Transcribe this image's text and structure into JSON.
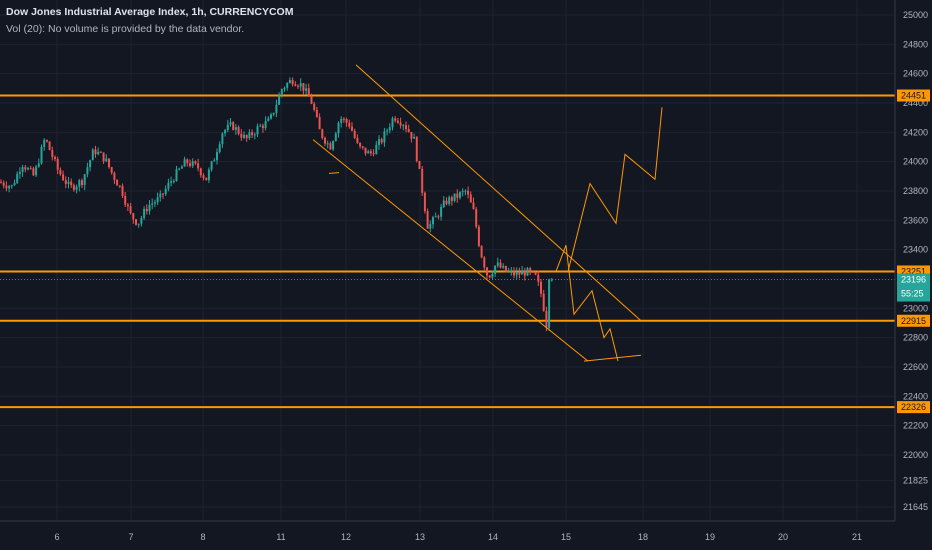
{
  "header": {
    "title": "Dow Jones Industrial Average Index, 1h, CURRENCYCOM",
    "volume_label": "Vol (20):",
    "volume_note": "No volume is provided by the data vendor."
  },
  "colors": {
    "background": "#131722",
    "up": "#26a69a",
    "down": "#ef5350",
    "level": "#ff9800",
    "grid": "#1f2330"
  },
  "chart_data": {
    "type": "candlestick",
    "title": "Dow Jones Industrial Average Index, 1h, CURRENCYCOM",
    "x_ticks": [
      "6",
      "7",
      "8",
      "11",
      "12",
      "13",
      "14",
      "15",
      "18",
      "19",
      "20",
      "21"
    ],
    "y_ticks": [
      25000,
      24800,
      24600,
      24400,
      24200,
      24000,
      23800,
      23600,
      23400,
      23000,
      22800,
      22600,
      22400,
      22200,
      22000,
      21825,
      21645
    ],
    "ylim": [
      21560,
      25080
    ],
    "grid": true,
    "horizontal_levels": [
      24451,
      23251,
      22915,
      22326
    ],
    "current_price": 23196,
    "countdown": "55:25",
    "close_path": [
      {
        "x": 0,
        "y": 23860
      },
      {
        "x": 12,
        "y": 23830
      },
      {
        "x": 22,
        "y": 23990
      },
      {
        "x": 34,
        "y": 23900
      },
      {
        "x": 45,
        "y": 24160
      },
      {
        "x": 58,
        "y": 23940
      },
      {
        "x": 70,
        "y": 23820
      },
      {
        "x": 82,
        "y": 23870
      },
      {
        "x": 94,
        "y": 24080
      },
      {
        "x": 105,
        "y": 24020
      },
      {
        "x": 112,
        "y": 23920
      },
      {
        "x": 122,
        "y": 23800
      },
      {
        "x": 130,
        "y": 23640
      },
      {
        "x": 138,
        "y": 23580
      },
      {
        "x": 148,
        "y": 23700
      },
      {
        "x": 160,
        "y": 23750
      },
      {
        "x": 172,
        "y": 23880
      },
      {
        "x": 186,
        "y": 24000
      },
      {
        "x": 198,
        "y": 23960
      },
      {
        "x": 206,
        "y": 23880
      },
      {
        "x": 214,
        "y": 24020
      },
      {
        "x": 222,
        "y": 24200
      },
      {
        "x": 232,
        "y": 24250
      },
      {
        "x": 246,
        "y": 24150
      },
      {
        "x": 258,
        "y": 24230
      },
      {
        "x": 270,
        "y": 24280
      },
      {
        "x": 282,
        "y": 24500
      },
      {
        "x": 292,
        "y": 24560
      },
      {
        "x": 302,
        "y": 24520
      },
      {
        "x": 312,
        "y": 24400
      },
      {
        "x": 320,
        "y": 24200
      },
      {
        "x": 330,
        "y": 24100
      },
      {
        "x": 340,
        "y": 24300
      },
      {
        "x": 350,
        "y": 24250
      },
      {
        "x": 358,
        "y": 24100
      },
      {
        "x": 370,
        "y": 24050
      },
      {
        "x": 382,
        "y": 24150
      },
      {
        "x": 394,
        "y": 24310
      },
      {
        "x": 404,
        "y": 24260
      },
      {
        "x": 414,
        "y": 24150
      },
      {
        "x": 420,
        "y": 23900
      },
      {
        "x": 428,
        "y": 23550
      },
      {
        "x": 436,
        "y": 23620
      },
      {
        "x": 446,
        "y": 23730
      },
      {
        "x": 456,
        "y": 23760
      },
      {
        "x": 466,
        "y": 23800
      },
      {
        "x": 474,
        "y": 23650
      },
      {
        "x": 480,
        "y": 23400
      },
      {
        "x": 488,
        "y": 23210
      },
      {
        "x": 496,
        "y": 23300
      },
      {
        "x": 506,
        "y": 23250
      },
      {
        "x": 516,
        "y": 23230
      },
      {
        "x": 526,
        "y": 23250
      },
      {
        "x": 536,
        "y": 23210
      },
      {
        "x": 542,
        "y": 23080
      },
      {
        "x": 548,
        "y": 22820
      },
      {
        "x": 552,
        "y": 23196
      }
    ],
    "annotations": {
      "channel_upper": [
        {
          "x": 356,
          "y": 24660
        },
        {
          "x": 641,
          "y": 22915
        }
      ],
      "channel_lower": [
        {
          "x": 313,
          "y": 24150
        },
        {
          "x": 588,
          "y": 22640
        }
      ],
      "dash_mark": [
        {
          "x": 329,
          "y": 23920
        },
        {
          "x": 339,
          "y": 23925
        }
      ],
      "target_base": [
        {
          "x": 584,
          "y": 22640
        },
        {
          "x": 641,
          "y": 22680
        }
      ],
      "scenario_bearish": [
        {
          "x": 556,
          "y": 23251
        },
        {
          "x": 566,
          "y": 23430
        },
        {
          "x": 574,
          "y": 22960
        },
        {
          "x": 592,
          "y": 23120
        },
        {
          "x": 604,
          "y": 22800
        },
        {
          "x": 610,
          "y": 22860
        },
        {
          "x": 618,
          "y": 22640
        }
      ],
      "scenario_bullish": [
        {
          "x": 568,
          "y": 23251
        },
        {
          "x": 590,
          "y": 23850
        },
        {
          "x": 616,
          "y": 23580
        },
        {
          "x": 625,
          "y": 24050
        },
        {
          "x": 655,
          "y": 23880
        },
        {
          "x": 662,
          "y": 24370
        }
      ]
    }
  }
}
